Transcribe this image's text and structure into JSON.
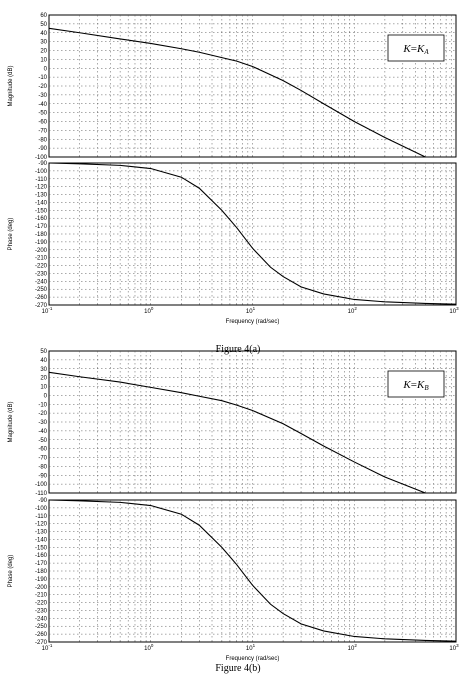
{
  "chart_data": [
    {
      "type": "line",
      "caption": "Figure 4(a)",
      "annotation": {
        "var": "K",
        "eq": "=",
        "sym": "K",
        "sub": "A"
      },
      "xlabel": "Frequency (rad/sec)",
      "xscale": "log",
      "xlim": [
        0.1,
        1000
      ],
      "xtick_base": "10",
      "xtick_exponents": [
        "-1",
        "0",
        "1",
        "2",
        "3"
      ],
      "grid": true,
      "magnitude": {
        "ylabel": "Magnitude (dB)",
        "ylim": [
          -100,
          60
        ],
        "yticks": [
          60,
          50,
          40,
          30,
          20,
          10,
          0,
          -10,
          -20,
          -30,
          -40,
          -50,
          -60,
          -70,
          -80,
          -90,
          -100
        ],
        "x": [
          0.1,
          0.2,
          0.5,
          1,
          2,
          3,
          5,
          7,
          10,
          20,
          30,
          50,
          100,
          200,
          500
        ],
        "y": [
          45,
          40,
          33,
          28,
          22,
          18,
          12,
          8,
          2,
          -14,
          -25,
          -40,
          -60,
          -78,
          -100
        ]
      },
      "phase": {
        "ylabel": "Phase (deg)",
        "ylim": [
          -270,
          -90
        ],
        "yticks": [
          -90,
          -100,
          -110,
          -120,
          -130,
          -140,
          -150,
          -160,
          -170,
          -180,
          -190,
          -200,
          -210,
          -220,
          -230,
          -240,
          -250,
          -260,
          -270
        ],
        "x": [
          0.1,
          0.2,
          0.5,
          1,
          2,
          3,
          5,
          7,
          10,
          15,
          20,
          30,
          50,
          100,
          200,
          500,
          1000
        ],
        "y": [
          -90,
          -91,
          -93,
          -97,
          -108,
          -122,
          -150,
          -172,
          -198,
          -222,
          -234,
          -247,
          -256,
          -263,
          -266,
          -268,
          -269
        ]
      }
    },
    {
      "type": "line",
      "caption": "Figure 4(b)",
      "annotation": {
        "var": "K",
        "eq": "=",
        "sym": "K",
        "sub": "B"
      },
      "xlabel": "Frequency (rad/sec)",
      "xscale": "log",
      "xlim": [
        0.1,
        1000
      ],
      "xtick_base": "10",
      "xtick_exponents": [
        "-1",
        "0",
        "1",
        "2",
        "3"
      ],
      "grid": true,
      "magnitude": {
        "ylabel": "Magnitude (dB)",
        "ylim": [
          -110,
          50
        ],
        "yticks": [
          50,
          40,
          30,
          20,
          10,
          0,
          -10,
          -20,
          -30,
          -40,
          -50,
          -60,
          -70,
          -80,
          -90,
          -100,
          -110
        ],
        "x": [
          0.1,
          0.2,
          0.5,
          1,
          2,
          3,
          5,
          7,
          10,
          20,
          30,
          50,
          100,
          200,
          500
        ],
        "y": [
          26,
          21,
          15,
          9,
          3,
          -1,
          -6,
          -11,
          -17,
          -32,
          -43,
          -57,
          -75,
          -92,
          -110
        ]
      },
      "phase": {
        "ylabel": "Phase (deg)",
        "ylim": [
          -270,
          -90
        ],
        "yticks": [
          -90,
          -100,
          -110,
          -120,
          -130,
          -140,
          -150,
          -160,
          -170,
          -180,
          -190,
          -200,
          -210,
          -220,
          -230,
          -240,
          -250,
          -260,
          -270
        ],
        "x": [
          0.1,
          0.2,
          0.5,
          1,
          2,
          3,
          5,
          7,
          10,
          15,
          20,
          30,
          50,
          100,
          200,
          500,
          1000
        ],
        "y": [
          -90,
          -91,
          -93,
          -97,
          -108,
          -122,
          -150,
          -172,
          -198,
          -222,
          -234,
          -247,
          -256,
          -263,
          -266,
          -268,
          -269
        ]
      }
    }
  ]
}
